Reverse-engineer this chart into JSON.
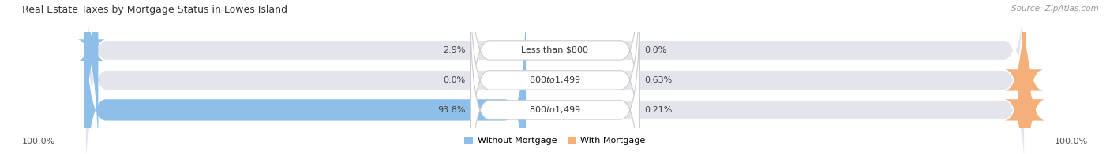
{
  "title": "Real Estate Taxes by Mortgage Status in Lowes Island",
  "source": "Source: ZipAtlas.com",
  "rows": [
    {
      "label": "Less than $800",
      "without_mortgage": 2.9,
      "with_mortgage": 0.0,
      "wm_label": "2.9%",
      "m_label": "0.0%"
    },
    {
      "label": "$800 to $1,499",
      "without_mortgage": 0.0,
      "with_mortgage": 0.63,
      "wm_label": "0.0%",
      "m_label": "0.63%"
    },
    {
      "label": "$800 to $1,499",
      "without_mortgage": 93.8,
      "with_mortgage": 0.21,
      "wm_label": "93.8%",
      "m_label": "0.21%"
    }
  ],
  "color_without": "#8DBFE8",
  "color_with": "#F5B07A",
  "bg_bar": "#E4E4EC",
  "bg_figure": "#FFFFFF",
  "axis_label_left": "100.0%",
  "axis_label_right": "100.0%",
  "legend_without": "Without Mortgage",
  "legend_with": "With Mortgage"
}
